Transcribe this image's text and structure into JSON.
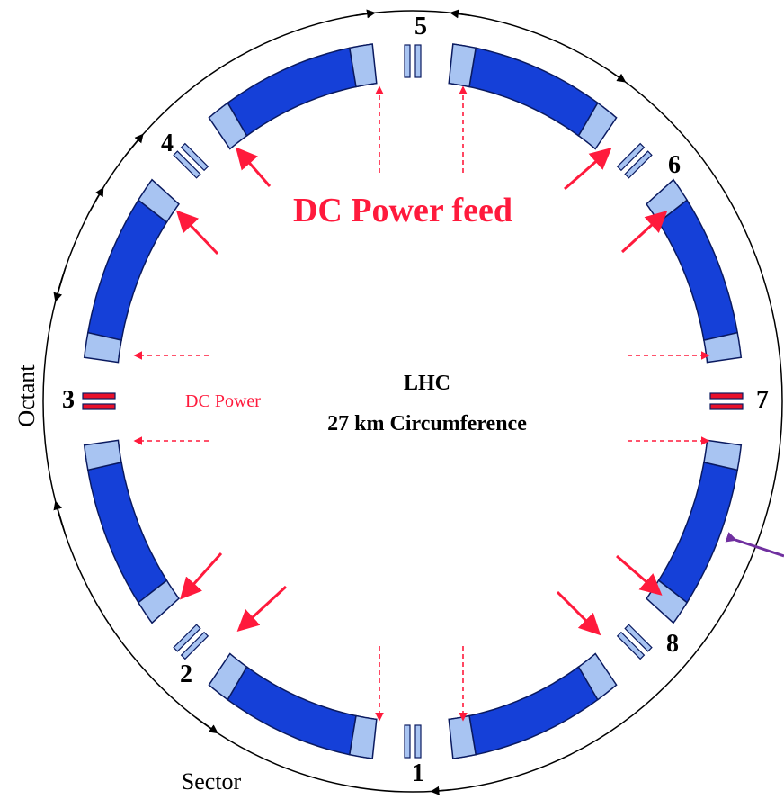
{
  "points": [
    "1",
    "2",
    "3",
    "4",
    "5",
    "6",
    "7",
    "8"
  ],
  "feed_label": "DC Power feed",
  "center": {
    "name": "LHC",
    "subtitle": "27 km Circumference"
  },
  "side_label": "DC Power",
  "octant_label": "Octant",
  "sector_label": "Sector"
}
